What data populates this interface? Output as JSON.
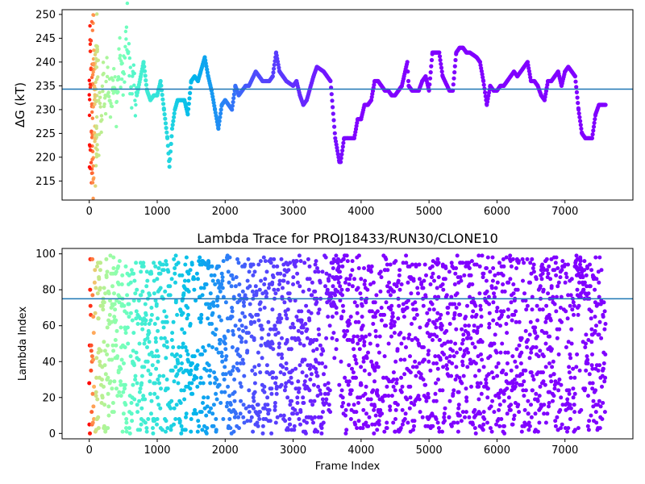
{
  "chart_data": [
    {
      "type": "scatter",
      "title": "",
      "xlabel": "",
      "ylabel": "ΔG (kT)",
      "xlim": [
        -400,
        8000
      ],
      "ylim": [
        211,
        251
      ],
      "xticks": [
        0,
        1000,
        2000,
        3000,
        4000,
        5000,
        6000,
        7000
      ],
      "yticks": [
        215,
        220,
        225,
        230,
        235,
        240,
        245,
        250
      ],
      "hline": 234.3,
      "grid": false,
      "color_by": "frame index (rainbow, red at early frames to violet at late frames)",
      "colors": {
        "hline": "#1f77b4"
      },
      "trace_points": [
        [
          0,
          230
        ],
        [
          20,
          250
        ],
        [
          40,
          220
        ],
        [
          60,
          214
        ],
        [
          80,
          240
        ],
        [
          100,
          226
        ],
        [
          120,
          247
        ],
        [
          140,
          222
        ],
        [
          160,
          236
        ],
        [
          180,
          224
        ],
        [
          200,
          238
        ],
        [
          230,
          229
        ],
        [
          260,
          239
        ],
        [
          300,
          232
        ],
        [
          350,
          237
        ],
        [
          400,
          231
        ],
        [
          450,
          241
        ],
        [
          500,
          235
        ],
        [
          560,
          248
        ],
        [
          600,
          236
        ],
        [
          700,
          233
        ],
        [
          800,
          240
        ],
        [
          850,
          234
        ],
        [
          900,
          232
        ],
        [
          950,
          233
        ],
        [
          1000,
          233
        ],
        [
          1050,
          236
        ],
        [
          1100,
          230
        ],
        [
          1150,
          224
        ],
        [
          1180,
          218
        ],
        [
          1220,
          226
        ],
        [
          1260,
          230
        ],
        [
          1300,
          232
        ],
        [
          1400,
          232
        ],
        [
          1450,
          229
        ],
        [
          1500,
          236
        ],
        [
          1550,
          237
        ],
        [
          1600,
          236
        ],
        [
          1700,
          241
        ],
        [
          1750,
          237
        ],
        [
          1800,
          234
        ],
        [
          1850,
          230
        ],
        [
          1900,
          226
        ],
        [
          1950,
          231
        ],
        [
          2000,
          232
        ],
        [
          2100,
          230
        ],
        [
          2150,
          235
        ],
        [
          2200,
          233
        ],
        [
          2300,
          235
        ],
        [
          2350,
          235
        ],
        [
          2450,
          238
        ],
        [
          2500,
          237
        ],
        [
          2550,
          236
        ],
        [
          2650,
          236
        ],
        [
          2700,
          237
        ],
        [
          2750,
          242
        ],
        [
          2800,
          238
        ],
        [
          2850,
          237
        ],
        [
          2900,
          236
        ],
        [
          3000,
          235
        ],
        [
          3050,
          236
        ],
        [
          3100,
          233
        ],
        [
          3150,
          231
        ],
        [
          3200,
          232
        ],
        [
          3300,
          237
        ],
        [
          3350,
          239
        ],
        [
          3450,
          238
        ],
        [
          3550,
          236
        ],
        [
          3620,
          224
        ],
        [
          3680,
          219
        ],
        [
          3700,
          219
        ],
        [
          3750,
          224
        ],
        [
          3800,
          224
        ],
        [
          3900,
          224
        ],
        [
          3950,
          228
        ],
        [
          4000,
          228
        ],
        [
          4050,
          231
        ],
        [
          4100,
          231
        ],
        [
          4150,
          232
        ],
        [
          4200,
          236
        ],
        [
          4250,
          236
        ],
        [
          4300,
          235
        ],
        [
          4350,
          234
        ],
        [
          4400,
          234
        ],
        [
          4450,
          233
        ],
        [
          4500,
          233
        ],
        [
          4550,
          234
        ],
        [
          4600,
          235
        ],
        [
          4680,
          240
        ],
        [
          4700,
          235
        ],
        [
          4750,
          234
        ],
        [
          4850,
          234
        ],
        [
          4900,
          236
        ],
        [
          4950,
          237
        ],
        [
          5000,
          234
        ],
        [
          5050,
          242
        ],
        [
          5100,
          242
        ],
        [
          5150,
          242
        ],
        [
          5200,
          237
        ],
        [
          5300,
          234
        ],
        [
          5350,
          234
        ],
        [
          5400,
          242
        ],
        [
          5450,
          243
        ],
        [
          5500,
          243
        ],
        [
          5550,
          242
        ],
        [
          5600,
          242
        ],
        [
          5700,
          241
        ],
        [
          5750,
          240
        ],
        [
          5800,
          236
        ],
        [
          5850,
          231
        ],
        [
          5900,
          235
        ],
        [
          5950,
          234
        ],
        [
          6000,
          234
        ],
        [
          6050,
          235
        ],
        [
          6100,
          235
        ],
        [
          6150,
          236
        ],
        [
          6200,
          237
        ],
        [
          6250,
          238
        ],
        [
          6300,
          237
        ],
        [
          6350,
          238
        ],
        [
          6400,
          239
        ],
        [
          6450,
          240
        ],
        [
          6500,
          236
        ],
        [
          6550,
          236
        ],
        [
          6600,
          235
        ],
        [
          6650,
          233
        ],
        [
          6700,
          232
        ],
        [
          6750,
          236
        ],
        [
          6800,
          236
        ],
        [
          6850,
          237
        ],
        [
          6900,
          238
        ],
        [
          6950,
          235
        ],
        [
          7000,
          238
        ],
        [
          7050,
          239
        ],
        [
          7100,
          238
        ],
        [
          7150,
          237
        ],
        [
          7200,
          230
        ],
        [
          7250,
          225
        ],
        [
          7300,
          224
        ],
        [
          7350,
          224
        ],
        [
          7400,
          224
        ],
        [
          7450,
          229
        ],
        [
          7500,
          231
        ],
        [
          7550,
          231
        ],
        [
          7600,
          231
        ]
      ]
    },
    {
      "type": "scatter",
      "title": "Lambda Trace for PROJ18433/RUN30/CLONE10",
      "xlabel": "Frame Index",
      "ylabel": "Lambda Index",
      "xlim": [
        -400,
        8000
      ],
      "ylim": [
        -3,
        103
      ],
      "xticks": [
        0,
        1000,
        2000,
        3000,
        4000,
        5000,
        6000,
        7000
      ],
      "yticks": [
        0,
        20,
        40,
        60,
        80,
        100
      ],
      "hline": 75,
      "grid": false,
      "color_by": "frame index (rainbow, red at early frames to violet at late frames)",
      "colors": {
        "hline": "#1f77b4"
      },
      "x_range_of_points": [
        0,
        7600
      ],
      "y_range_of_points": [
        0,
        99
      ]
    }
  ]
}
